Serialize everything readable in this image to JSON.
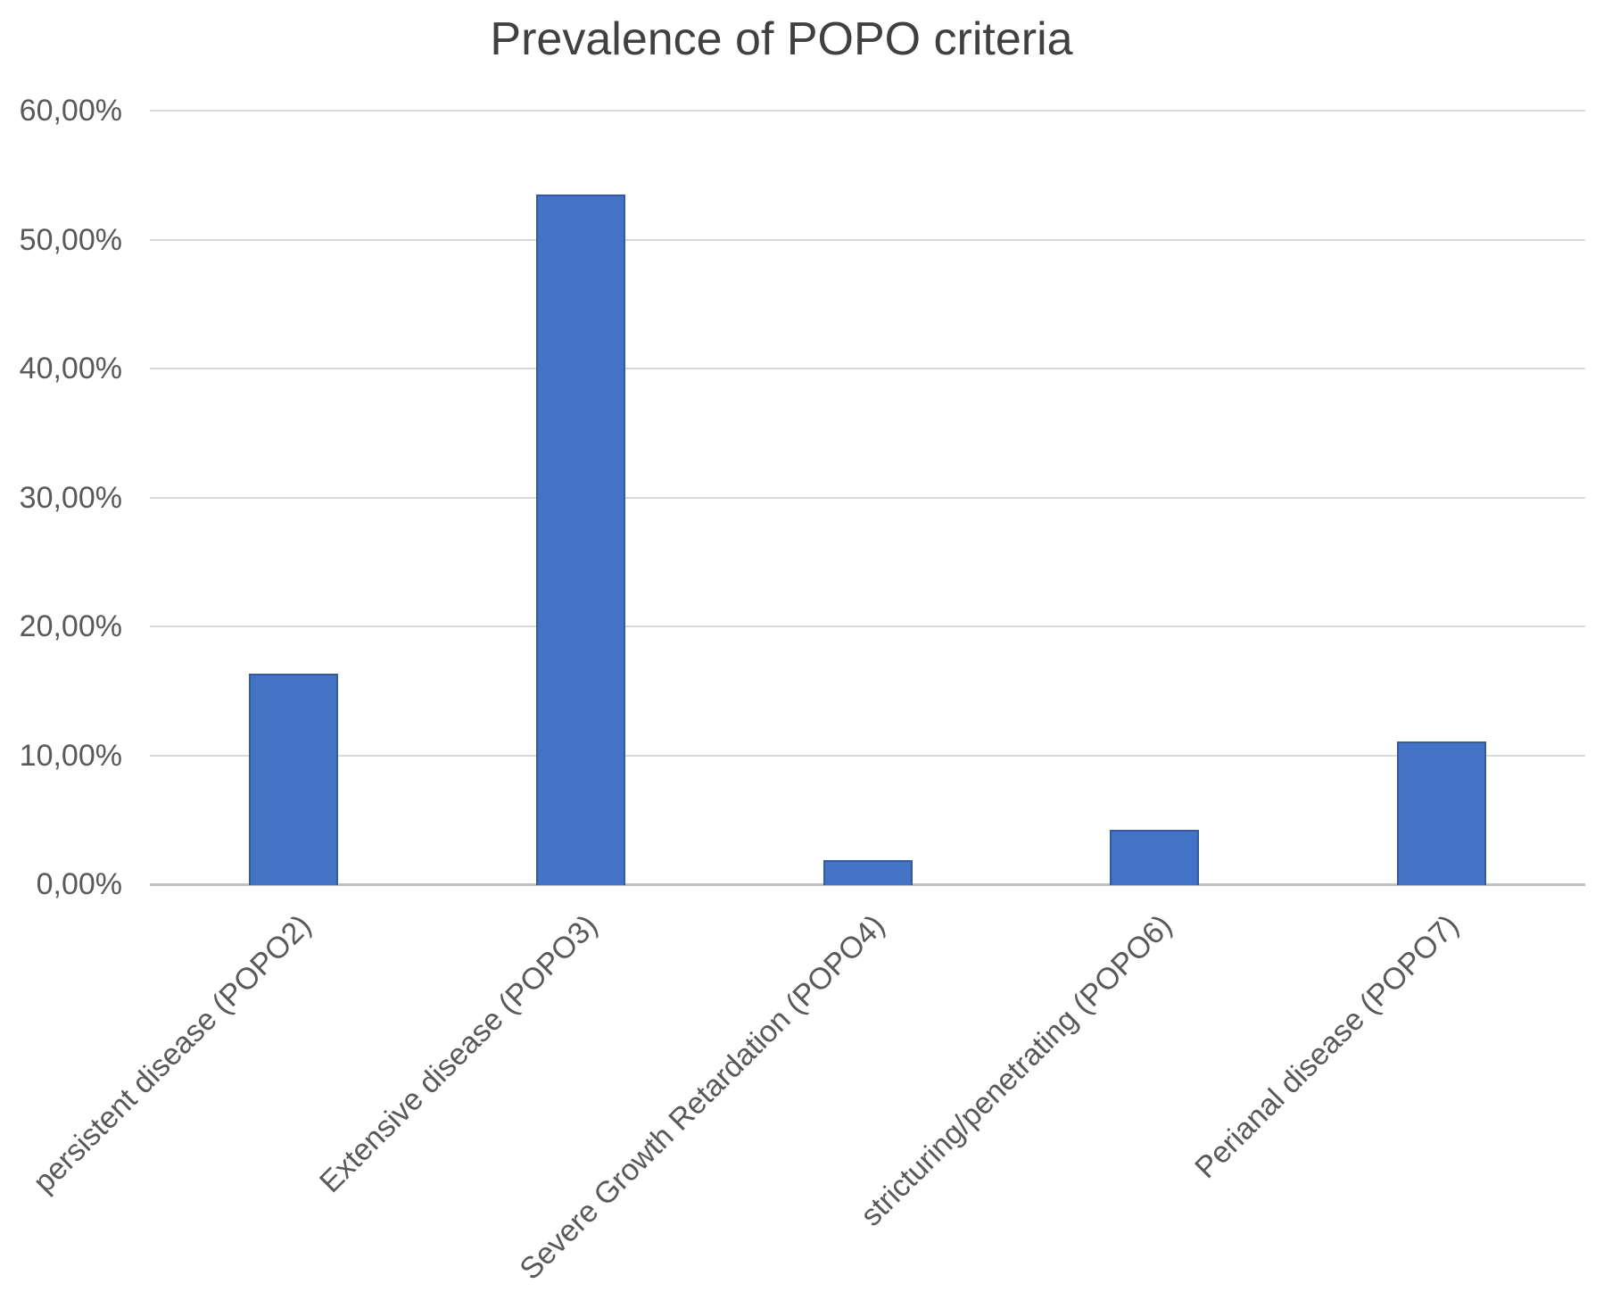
{
  "chart_data": {
    "type": "bar",
    "title": "Prevalence of POPO criteria",
    "categories": [
      "persistent disease (POPO2)",
      "Extensive disease (POPO3)",
      "Severe Growth Retardation (POPO4)",
      "stricturing/penetrating (POPO6)",
      "Perianal disease (POPO7)"
    ],
    "values": [
      16.3,
      53.5,
      1.9,
      4.2,
      11.1
    ],
    "value_unit": "%",
    "xlabel": "",
    "ylabel": "",
    "ylim": [
      0,
      60
    ],
    "y_ticks": [
      {
        "value": 0,
        "label": "0,00%"
      },
      {
        "value": 10,
        "label": "10,00%"
      },
      {
        "value": 20,
        "label": "20,00%"
      },
      {
        "value": 30,
        "label": "30,00%"
      },
      {
        "value": 40,
        "label": "40,00%"
      },
      {
        "value": 50,
        "label": "50,00%"
      },
      {
        "value": 60,
        "label": "60,00%"
      }
    ],
    "grid": true,
    "legend": "none",
    "x_label_rotation_deg": 45,
    "colors": {
      "bar": "#4472C4",
      "bar_border": "#355A9F",
      "gridline": "#D9D9D9",
      "axis_line": "#BFBFBF",
      "tick_text": "#595959",
      "title_text": "#404040",
      "background": "#FFFFFF"
    }
  }
}
